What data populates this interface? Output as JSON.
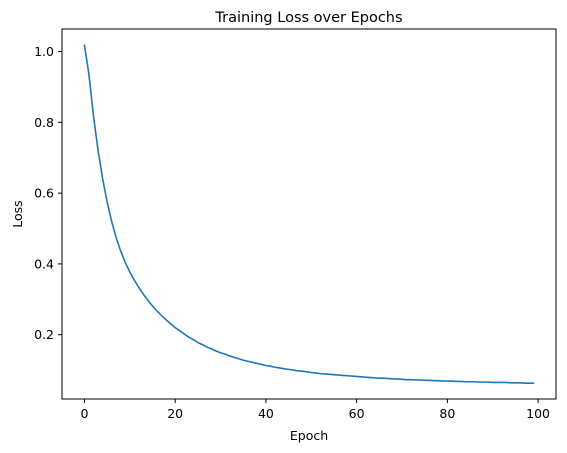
{
  "chart_data": {
    "type": "line",
    "title": "Training Loss over Epochs",
    "xlabel": "Epoch",
    "ylabel": "Loss",
    "xlim": [
      -4.95,
      103.95
    ],
    "ylim": [
      0.0183,
      1.0637
    ],
    "xticks": [
      0,
      20,
      40,
      60,
      80,
      100
    ],
    "xtick_labels": [
      "0",
      "20",
      "40",
      "60",
      "80",
      "100"
    ],
    "yticks": [
      0.2,
      0.4,
      0.6,
      0.8,
      1.0
    ],
    "ytick_labels": [
      "0.2",
      "0.4",
      "0.6",
      "0.8",
      "1.0"
    ],
    "grid": false,
    "line_color": "#1f77b4",
    "series": [
      {
        "x": [
          0,
          1,
          2,
          3,
          4,
          5,
          6,
          7,
          8,
          9,
          10,
          11,
          12,
          13,
          14,
          15,
          16,
          17,
          18,
          19,
          20,
          21,
          22,
          23,
          24,
          25,
          26,
          27,
          28,
          29,
          30,
          31,
          32,
          33,
          34,
          35,
          36,
          37,
          38,
          39,
          40,
          41,
          42,
          43,
          44,
          45,
          46,
          47,
          48,
          49,
          50,
          51,
          52,
          53,
          54,
          55,
          56,
          57,
          58,
          59,
          60,
          61,
          62,
          63,
          64,
          65,
          66,
          67,
          68,
          69,
          70,
          71,
          72,
          73,
          74,
          75,
          76,
          77,
          78,
          79,
          80,
          81,
          82,
          83,
          84,
          85,
          86,
          87,
          88,
          89,
          90,
          91,
          92,
          93,
          94,
          95,
          96,
          97,
          98,
          99
        ],
        "y": [
          1.018,
          0.934,
          0.817,
          0.721,
          0.641,
          0.575,
          0.52,
          0.474,
          0.436,
          0.404,
          0.377,
          0.354,
          0.333,
          0.314,
          0.297,
          0.281,
          0.267,
          0.254,
          0.242,
          0.231,
          0.22,
          0.211,
          0.202,
          0.193,
          0.186,
          0.178,
          0.172,
          0.165,
          0.16,
          0.154,
          0.149,
          0.145,
          0.14,
          0.136,
          0.132,
          0.128,
          0.125,
          0.122,
          0.119,
          0.116,
          0.113,
          0.111,
          0.108,
          0.106,
          0.104,
          0.102,
          0.1,
          0.098,
          0.097,
          0.095,
          0.093,
          0.092,
          0.09,
          0.089,
          0.088,
          0.087,
          0.086,
          0.085,
          0.084,
          0.083,
          0.082,
          0.081,
          0.08,
          0.079,
          0.078,
          0.077,
          0.077,
          0.076,
          0.075,
          0.075,
          0.074,
          0.073,
          0.073,
          0.072,
          0.072,
          0.071,
          0.071,
          0.07,
          0.07,
          0.069,
          0.069,
          0.069,
          0.068,
          0.068,
          0.067,
          0.067,
          0.067,
          0.066,
          0.066,
          0.066,
          0.065,
          0.065,
          0.065,
          0.065,
          0.064,
          0.064,
          0.064,
          0.063,
          0.063,
          0.063
        ]
      }
    ]
  }
}
